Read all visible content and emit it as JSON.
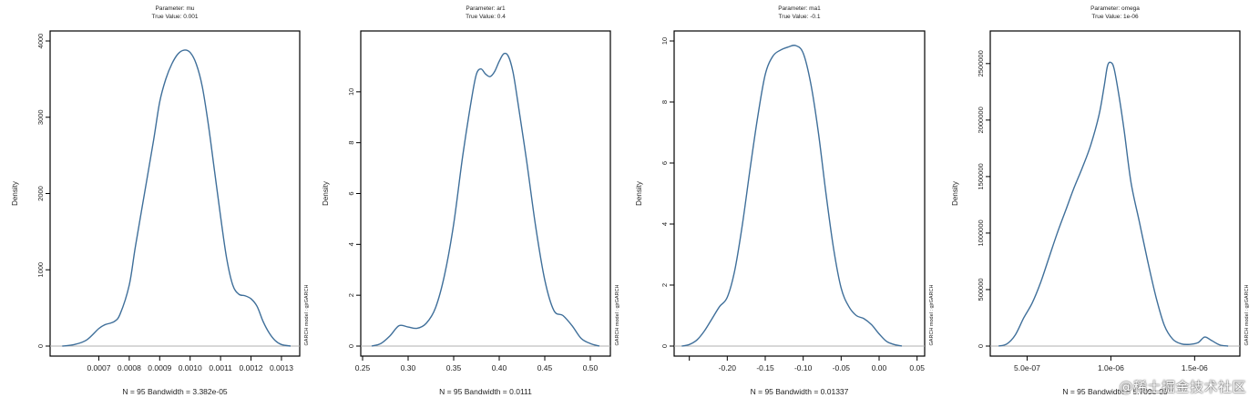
{
  "watermark": "@稀土掘金技术社区",
  "chart_data": [
    {
      "type": "line",
      "title": "Parameter: mu",
      "subtitle": "True Value: 0.001",
      "xlabel": "N = 95   Bandwidth = 3.382e-05",
      "ylabel": "Density",
      "side_note": "GARCH model : gjrGARCH",
      "xlim": [
        0.00054,
        0.00136
      ],
      "ylim": [
        0,
        4000
      ],
      "x_ticks": [
        0.0007,
        0.0008,
        0.0009,
        0.001,
        0.0011,
        0.0012,
        0.0013
      ],
      "x_tick_labels": [
        "0.0007",
        "0.0008",
        "0.0009",
        "0.0010",
        "0.0011",
        "0.0012",
        "0.0013"
      ],
      "y_ticks": [
        0,
        1000,
        2000,
        3000,
        4000
      ],
      "y_tick_labels": [
        "0",
        "1000",
        "2000",
        "3000",
        "4000"
      ],
      "series": [
        {
          "x": [
            0.00058,
            0.00062,
            0.00066,
            0.0007,
            0.00072,
            0.00075,
            0.00077,
            0.0008,
            0.00082,
            0.00085,
            0.00088,
            0.0009,
            0.00092,
            0.00094,
            0.00096,
            0.00098,
            0.001,
            0.00102,
            0.00104,
            0.00106,
            0.00108,
            0.0011,
            0.00112,
            0.00114,
            0.00116,
            0.00118,
            0.0012,
            0.00122,
            0.00124,
            0.00126,
            0.00128,
            0.0013,
            0.00133
          ],
          "y": [
            0,
            20,
            80,
            230,
            280,
            320,
            420,
            800,
            1300,
            2000,
            2700,
            3200,
            3500,
            3700,
            3830,
            3880,
            3850,
            3700,
            3400,
            2900,
            2300,
            1700,
            1150,
            800,
            680,
            660,
            620,
            520,
            320,
            170,
            70,
            20,
            0
          ]
        }
      ]
    },
    {
      "type": "line",
      "title": "Parameter: ar1",
      "subtitle": "True Value: 0.4",
      "xlabel": "N = 95   Bandwidth = 0.0111",
      "ylabel": "Density",
      "side_note": "GARCH model : gjrGARCH",
      "xlim": [
        0.248,
        0.522
      ],
      "ylim": [
        0,
        12
      ],
      "x_ticks": [
        0.25,
        0.3,
        0.35,
        0.4,
        0.45,
        0.5
      ],
      "x_tick_labels": [
        "0.25",
        "0.30",
        "0.35",
        "0.40",
        "0.45",
        "0.50"
      ],
      "y_ticks": [
        0,
        2,
        4,
        6,
        8,
        10
      ],
      "y_tick_labels": [
        "0",
        "2",
        "4",
        "6",
        "8",
        "10"
      ],
      "series": [
        {
          "x": [
            0.26,
            0.27,
            0.28,
            0.29,
            0.3,
            0.31,
            0.32,
            0.33,
            0.34,
            0.35,
            0.36,
            0.37,
            0.375,
            0.38,
            0.385,
            0.39,
            0.395,
            0.4,
            0.405,
            0.41,
            0.415,
            0.42,
            0.43,
            0.44,
            0.45,
            0.46,
            0.47,
            0.48,
            0.49,
            0.5,
            0.51
          ],
          "y": [
            0.0,
            0.1,
            0.4,
            0.8,
            0.75,
            0.7,
            0.9,
            1.5,
            2.8,
            4.8,
            7.5,
            9.8,
            10.7,
            10.9,
            10.7,
            10.6,
            10.8,
            11.2,
            11.5,
            11.4,
            10.8,
            9.7,
            7.3,
            4.7,
            2.6,
            1.4,
            1.2,
            0.8,
            0.3,
            0.1,
            0.0
          ]
        }
      ]
    },
    {
      "type": "line",
      "title": "Parameter: ma1",
      "subtitle": "True Value: -0.1",
      "xlabel": "N = 95   Bandwidth = 0.01337",
      "ylabel": "Density",
      "side_note": "GARCH model : gjrGARCH",
      "xlim": [
        -0.27,
        0.06
      ],
      "ylim": [
        0,
        10
      ],
      "x_ticks": [
        -0.25,
        -0.2,
        -0.15,
        -0.1,
        -0.05,
        0.0,
        0.05
      ],
      "x_tick_labels": [
        "",
        "-0.20",
        "-0.15",
        "-0.10",
        "-0.05",
        "0.00",
        "0.05"
      ],
      "y_ticks": [
        0,
        2,
        4,
        6,
        8,
        10
      ],
      "y_tick_labels": [
        "0",
        "2",
        "4",
        "6",
        "8",
        "10"
      ],
      "series": [
        {
          "x": [
            -0.26,
            -0.25,
            -0.24,
            -0.23,
            -0.22,
            -0.21,
            -0.2,
            -0.19,
            -0.18,
            -0.17,
            -0.16,
            -0.15,
            -0.14,
            -0.13,
            -0.12,
            -0.11,
            -0.1,
            -0.09,
            -0.08,
            -0.07,
            -0.06,
            -0.05,
            -0.04,
            -0.03,
            -0.02,
            -0.01,
            0.0,
            0.01,
            0.02,
            0.03
          ],
          "y": [
            0.0,
            0.05,
            0.2,
            0.5,
            0.9,
            1.3,
            1.6,
            2.5,
            4.0,
            5.8,
            7.5,
            8.9,
            9.5,
            9.7,
            9.8,
            9.85,
            9.6,
            8.6,
            7.0,
            5.0,
            3.2,
            1.9,
            1.3,
            1.0,
            0.9,
            0.7,
            0.4,
            0.15,
            0.05,
            0.0
          ]
        }
      ]
    },
    {
      "type": "line",
      "title": "Parameter: omega",
      "subtitle": "True Value: 1e-06",
      "xlabel": "N = 95   Bandwidth = 5.709e-08",
      "ylabel": "Density",
      "side_note": "GARCH model : gjrGARCH",
      "xlim": [
        2.8e-07,
        1.77e-06
      ],
      "ylim": [
        0,
        2700000
      ],
      "x_ticks": [
        5e-07,
        1e-06,
        1.5e-06
      ],
      "x_tick_labels": [
        "5.0e-07",
        "1.0e-06",
        "1.5e-06"
      ],
      "y_ticks": [
        0,
        500000,
        1000000,
        1500000,
        2000000,
        2500000
      ],
      "y_tick_labels": [
        "0",
        "500000",
        "1000000",
        "1500000",
        "2000000",
        "2500000"
      ],
      "series": [
        {
          "x": [
            3.3e-07,
            3.8e-07,
            4.3e-07,
            4.8e-07,
            5.3e-07,
            5.8e-07,
            6.3e-07,
            6.8e-07,
            7.3e-07,
            7.8e-07,
            8.3e-07,
            8.8e-07,
            9.3e-07,
            9.6e-07,
            9.8e-07,
            1e-06,
            1.02e-06,
            1.05e-06,
            1.08e-06,
            1.12e-06,
            1.17e-06,
            1.22e-06,
            1.27e-06,
            1.32e-06,
            1.37e-06,
            1.42e-06,
            1.47e-06,
            1.52e-06,
            1.56e-06,
            1.6e-06,
            1.65e-06,
            1.7e-06
          ],
          "y": [
            0,
            20000,
            100000,
            250000,
            380000,
            560000,
            780000,
            1000000,
            1200000,
            1400000,
            1580000,
            1780000,
            2050000,
            2300000,
            2480000,
            2510000,
            2450000,
            2200000,
            1900000,
            1450000,
            1100000,
            750000,
            430000,
            180000,
            60000,
            20000,
            15000,
            30000,
            80000,
            50000,
            10000,
            0
          ]
        }
      ]
    }
  ]
}
